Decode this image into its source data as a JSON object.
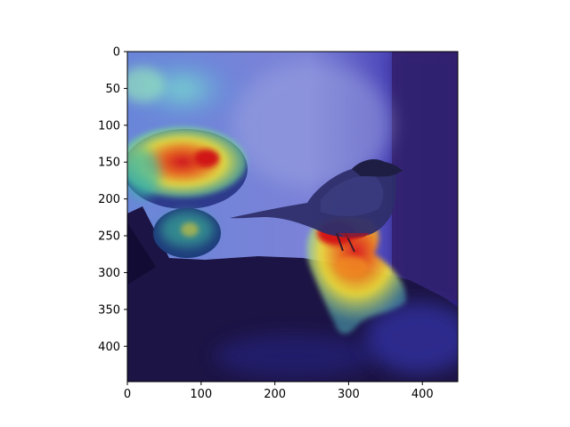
{
  "figure": {
    "image_content": "bird-with-saliency-heatmap",
    "colormap": "jet",
    "xlim": [
      0,
      448
    ],
    "ylim": [
      448,
      0
    ]
  },
  "axes": {
    "x_ticks": [
      {
        "value": 0,
        "label": "0"
      },
      {
        "value": 100,
        "label": "100"
      },
      {
        "value": 200,
        "label": "200"
      },
      {
        "value": 300,
        "label": "300"
      },
      {
        "value": 400,
        "label": "400"
      }
    ],
    "y_ticks": [
      {
        "value": 0,
        "label": "0"
      },
      {
        "value": 50,
        "label": "50"
      },
      {
        "value": 100,
        "label": "100"
      },
      {
        "value": 150,
        "label": "150"
      },
      {
        "value": 200,
        "label": "200"
      },
      {
        "value": 250,
        "label": "250"
      },
      {
        "value": 300,
        "label": "300"
      },
      {
        "value": 350,
        "label": "350"
      },
      {
        "value": 400,
        "label": "400"
      }
    ]
  },
  "colors": {
    "heat_red": "#e8201a",
    "heat_yellow": "#f2e23a",
    "heat_cyan": "#5fe8e0",
    "heat_blue": "#3a3cd8",
    "background_blue": "#4a5ad8",
    "rock_dark": "#1c1444"
  }
}
